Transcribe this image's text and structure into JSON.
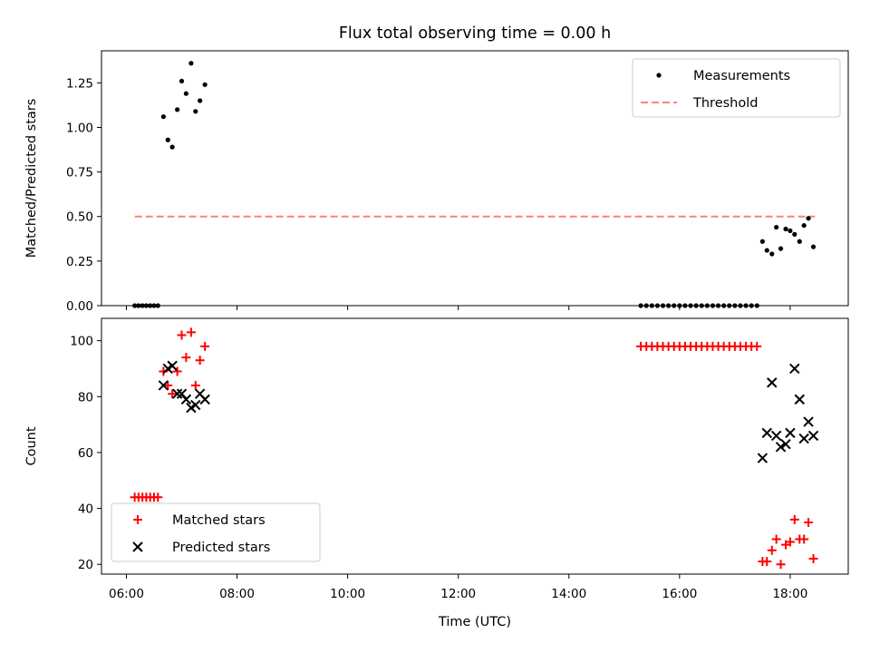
{
  "chart_data": {
    "type": "scatter",
    "title": "Flux total observing time = 0.00 h",
    "xlabel": "Time (UTC)",
    "x_ticks": [
      "06:00",
      "08:00",
      "10:00",
      "12:00",
      "14:00",
      "16:00",
      "18:00"
    ],
    "x_tick_hours": [
      6,
      8,
      10,
      12,
      14,
      16,
      18
    ],
    "xlim_hours": [
      5.55,
      19.05
    ],
    "panels": [
      {
        "ylabel": "Matched/Predicted stars",
        "ylim": [
          0,
          1.43
        ],
        "y_ticks": [
          0.0,
          0.25,
          0.5,
          0.75,
          1.0,
          1.25
        ],
        "y_tick_labels": [
          "0.00",
          "0.25",
          "0.50",
          "0.75",
          "1.00",
          "1.25"
        ],
        "legend": {
          "placement": "upper-right",
          "entries": [
            "Measurements",
            "Threshold"
          ]
        },
        "threshold": {
          "name": "Threshold",
          "value": 0.5,
          "x_range_hours": [
            6.15,
            18.45
          ],
          "color": "#ff7f7f"
        },
        "series": [
          {
            "name": "Measurements",
            "marker": "dot",
            "color": "#000000",
            "points": [
              [
                6.15,
                0
              ],
              [
                6.22,
                0
              ],
              [
                6.29,
                0
              ],
              [
                6.36,
                0
              ],
              [
                6.43,
                0
              ],
              [
                6.5,
                0
              ],
              [
                6.57,
                0
              ],
              [
                6.67,
                1.06
              ],
              [
                6.75,
                0.93
              ],
              [
                6.83,
                0.89
              ],
              [
                6.92,
                1.1
              ],
              [
                7.0,
                1.26
              ],
              [
                7.08,
                1.19
              ],
              [
                7.17,
                1.36
              ],
              [
                7.25,
                1.09
              ],
              [
                7.33,
                1.15
              ],
              [
                7.42,
                1.24
              ],
              [
                15.3,
                0
              ],
              [
                15.4,
                0
              ],
              [
                15.5,
                0
              ],
              [
                15.6,
                0
              ],
              [
                15.7,
                0
              ],
              [
                15.8,
                0
              ],
              [
                15.9,
                0
              ],
              [
                16.0,
                0
              ],
              [
                16.1,
                0
              ],
              [
                16.2,
                0
              ],
              [
                16.3,
                0
              ],
              [
                16.4,
                0
              ],
              [
                16.5,
                0
              ],
              [
                16.6,
                0
              ],
              [
                16.7,
                0
              ],
              [
                16.8,
                0
              ],
              [
                16.9,
                0
              ],
              [
                17.0,
                0
              ],
              [
                17.1,
                0
              ],
              [
                17.2,
                0
              ],
              [
                17.3,
                0
              ],
              [
                17.4,
                0
              ],
              [
                17.5,
                0.36
              ],
              [
                17.58,
                0.31
              ],
              [
                17.67,
                0.29
              ],
              [
                17.75,
                0.44
              ],
              [
                17.83,
                0.32
              ],
              [
                17.92,
                0.43
              ],
              [
                18.0,
                0.42
              ],
              [
                18.08,
                0.4
              ],
              [
                18.17,
                0.36
              ],
              [
                18.25,
                0.45
              ],
              [
                18.33,
                0.49
              ],
              [
                18.42,
                0.33
              ]
            ]
          }
        ]
      },
      {
        "ylabel": "Count",
        "ylim": [
          16.5,
          108
        ],
        "y_ticks": [
          20,
          40,
          60,
          80,
          100
        ],
        "y_tick_labels": [
          "20",
          "40",
          "60",
          "80",
          "100"
        ],
        "legend": {
          "placement": "lower-left",
          "entries": [
            "Matched stars",
            "Predicted stars"
          ]
        },
        "series": [
          {
            "name": "Matched stars",
            "marker": "plus",
            "color": "#ff0000",
            "points": [
              [
                6.15,
                44
              ],
              [
                6.22,
                44
              ],
              [
                6.29,
                44
              ],
              [
                6.36,
                44
              ],
              [
                6.43,
                44
              ],
              [
                6.5,
                44
              ],
              [
                6.57,
                44
              ],
              [
                6.67,
                89
              ],
              [
                6.75,
                84
              ],
              [
                6.83,
                81
              ],
              [
                6.92,
                89
              ],
              [
                7.0,
                102
              ],
              [
                7.08,
                94
              ],
              [
                7.17,
                103
              ],
              [
                7.25,
                84
              ],
              [
                7.33,
                93
              ],
              [
                7.42,
                98
              ],
              [
                15.3,
                98
              ],
              [
                15.4,
                98
              ],
              [
                15.5,
                98
              ],
              [
                15.6,
                98
              ],
              [
                15.7,
                98
              ],
              [
                15.8,
                98
              ],
              [
                15.9,
                98
              ],
              [
                16.0,
                98
              ],
              [
                16.1,
                98
              ],
              [
                16.2,
                98
              ],
              [
                16.3,
                98
              ],
              [
                16.4,
                98
              ],
              [
                16.5,
                98
              ],
              [
                16.6,
                98
              ],
              [
                16.7,
                98
              ],
              [
                16.8,
                98
              ],
              [
                16.9,
                98
              ],
              [
                17.0,
                98
              ],
              [
                17.1,
                98
              ],
              [
                17.2,
                98
              ],
              [
                17.3,
                98
              ],
              [
                17.4,
                98
              ],
              [
                17.5,
                21
              ],
              [
                17.58,
                21
              ],
              [
                17.67,
                25
              ],
              [
                17.75,
                29
              ],
              [
                17.83,
                20
              ],
              [
                17.92,
                27
              ],
              [
                18.0,
                28
              ],
              [
                18.08,
                36
              ],
              [
                18.17,
                29
              ],
              [
                18.25,
                29
              ],
              [
                18.33,
                35
              ],
              [
                18.42,
                22
              ]
            ]
          },
          {
            "name": "Predicted stars",
            "marker": "x",
            "color": "#000000",
            "points": [
              [
                6.67,
                84
              ],
              [
                6.75,
                90
              ],
              [
                6.83,
                91
              ],
              [
                6.92,
                81
              ],
              [
                7.0,
                81
              ],
              [
                7.08,
                79
              ],
              [
                7.17,
                76
              ],
              [
                7.25,
                77
              ],
              [
                7.33,
                81
              ],
              [
                7.42,
                79
              ],
              [
                17.5,
                58
              ],
              [
                17.58,
                67
              ],
              [
                17.67,
                85
              ],
              [
                17.75,
                66
              ],
              [
                17.83,
                62
              ],
              [
                17.92,
                63
              ],
              [
                18.0,
                67
              ],
              [
                18.08,
                90
              ],
              [
                18.17,
                79
              ],
              [
                18.25,
                65
              ],
              [
                18.33,
                71
              ],
              [
                18.42,
                66
              ]
            ]
          }
        ]
      }
    ]
  }
}
